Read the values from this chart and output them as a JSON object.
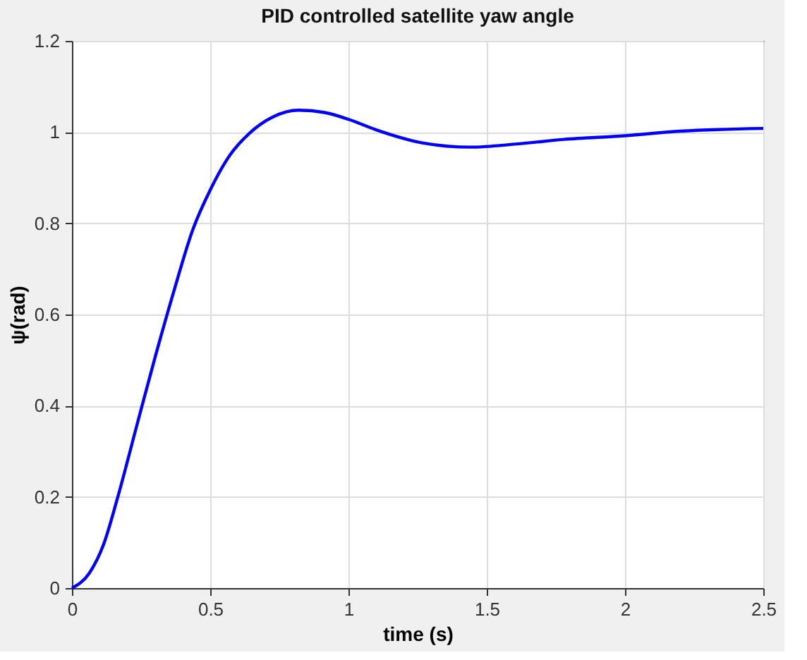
{
  "chart_data": {
    "type": "line",
    "title": "PID controlled satellite yaw angle",
    "xlabel": "time (s)",
    "ylabel": "ψ(rad)",
    "x": [
      0,
      0.063,
      0.114,
      0.165,
      0.233,
      0.301,
      0.369,
      0.437,
      0.5,
      0.573,
      0.641,
      0.726,
      0.82,
      0.913,
      1.0,
      1.1,
      1.27,
      1.44,
      1.61,
      1.78,
      2.0,
      2.2,
      2.5
    ],
    "series": [
      {
        "color": "#0000ff",
        "values": [
          0,
          0.033,
          0.095,
          0.198,
          0.353,
          0.507,
          0.652,
          0.786,
          0.873,
          0.951,
          0.997,
          1.033,
          1.048,
          1.043,
          1.028,
          1.005,
          0.976,
          0.967,
          0.974,
          0.984,
          0.992,
          1.002,
          1.008
        ]
      }
    ],
    "xlim": [
      0,
      2.5
    ],
    "xticks": [
      0,
      0.5,
      1,
      1.5,
      2,
      2.5
    ],
    "ylim": [
      0,
      1.2
    ],
    "yticks": [
      0,
      0.2,
      0.4,
      0.6,
      0.8,
      1,
      1.2
    ],
    "grid": true,
    "marker": "none",
    "line_style": "solid"
  }
}
